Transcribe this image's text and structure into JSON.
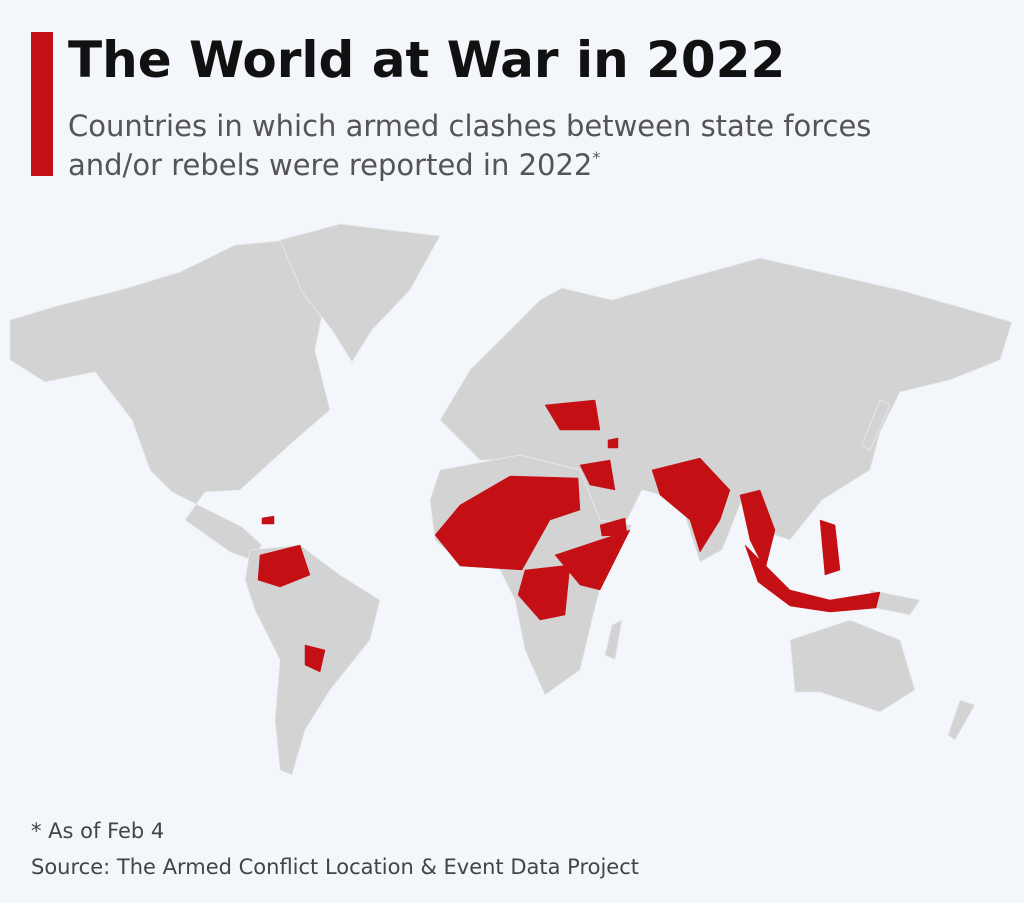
{
  "header": {
    "title": "The World at War in 2022",
    "subtitle_lines": [
      "Countries in which armed clashes between state forces",
      "and/or rebels were reported in 2022"
    ],
    "subtitle_mark": "*"
  },
  "footer": {
    "note": "* As of Feb 4",
    "source": "Source: The Armed Conflict Location & Event Data Project"
  }
}
